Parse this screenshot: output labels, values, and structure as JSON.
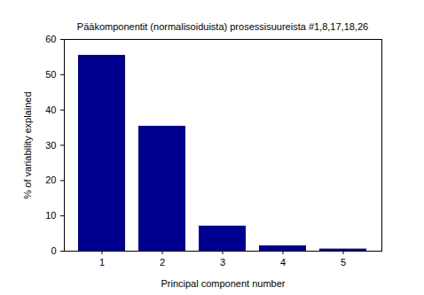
{
  "chart_data": {
    "type": "bar",
    "title": "Pääkomponentit (normalisoiduista) prosessisuureista #1,8,17,18,26",
    "xlabel": "Principal component number",
    "ylabel": "% of variability explained",
    "categories": [
      "1",
      "2",
      "3",
      "4",
      "5"
    ],
    "values": [
      55.5,
      35.4,
      7.1,
      1.5,
      0.6
    ],
    "color": "#000090",
    "ylim": [
      0,
      60
    ],
    "yticks": [
      0,
      10,
      20,
      30,
      40,
      50,
      60
    ],
    "grid": false
  }
}
